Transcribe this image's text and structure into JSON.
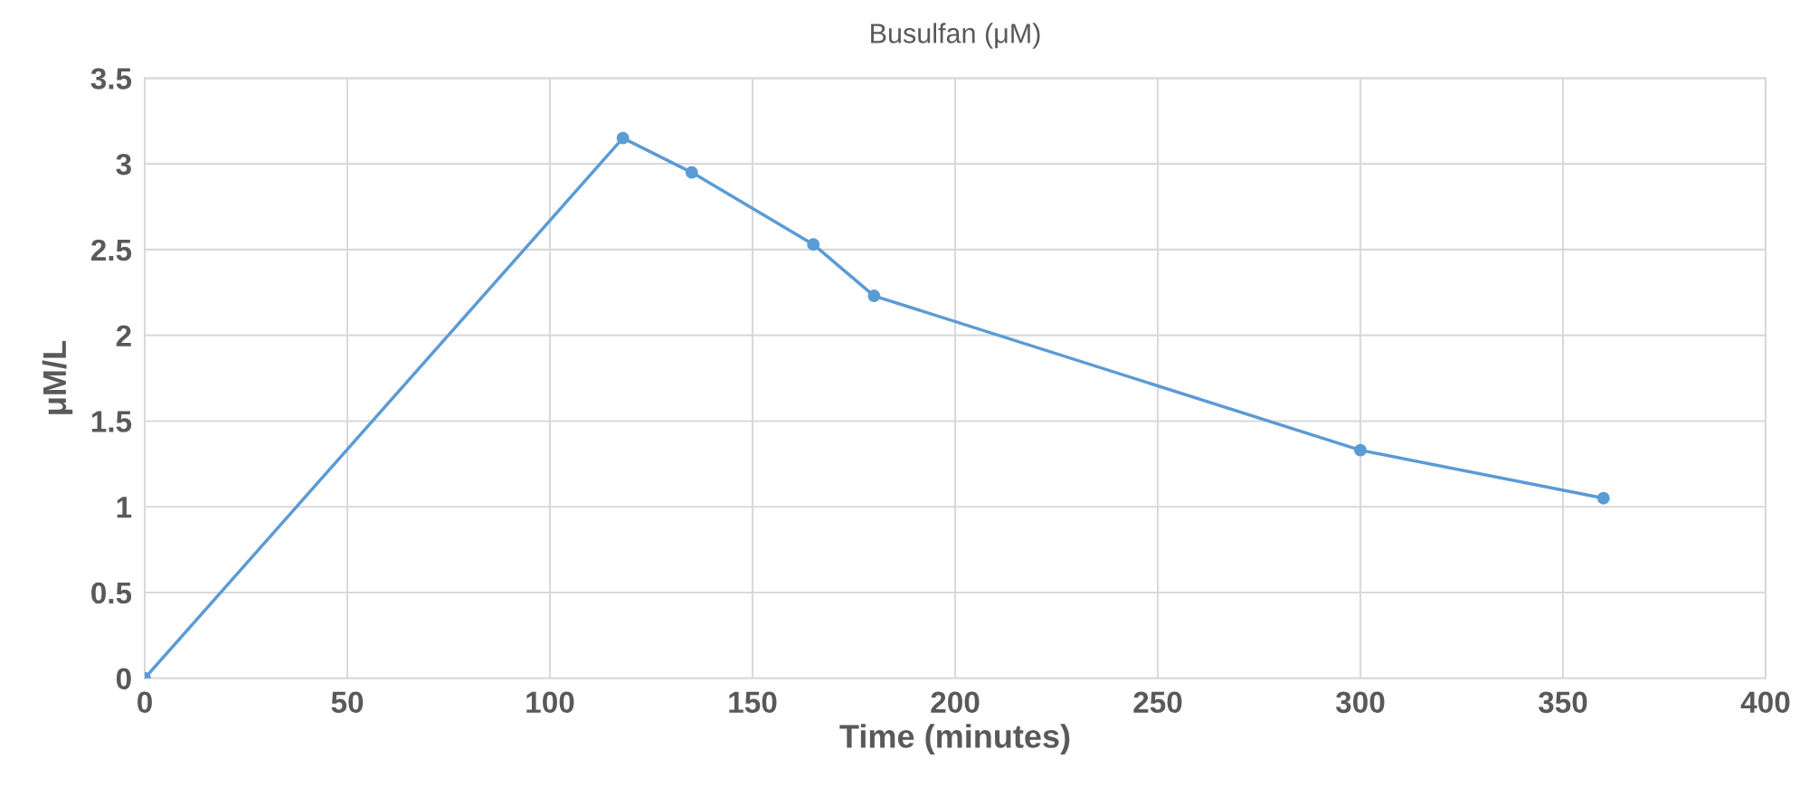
{
  "chart_data": {
    "type": "line",
    "title": "Busulfan (μM)",
    "xlabel": "Time (minutes)",
    "ylabel": "μM/L",
    "x": [
      0,
      118,
      135,
      165,
      180,
      300,
      360
    ],
    "series": [
      {
        "color": "#5b9bd5",
        "values": [
          0,
          3.15,
          2.95,
          2.53,
          2.23,
          1.33,
          1.05
        ]
      }
    ],
    "xlim": [
      0,
      400
    ],
    "xticks": [
      0,
      50,
      100,
      150,
      200,
      250,
      300,
      350,
      400
    ],
    "ylim": [
      0,
      3.5
    ],
    "yticks": [
      0,
      0.5,
      1,
      1.5,
      2,
      2.5,
      3,
      3.5
    ],
    "grid": true,
    "marker": "circle",
    "line_style": "solid"
  }
}
